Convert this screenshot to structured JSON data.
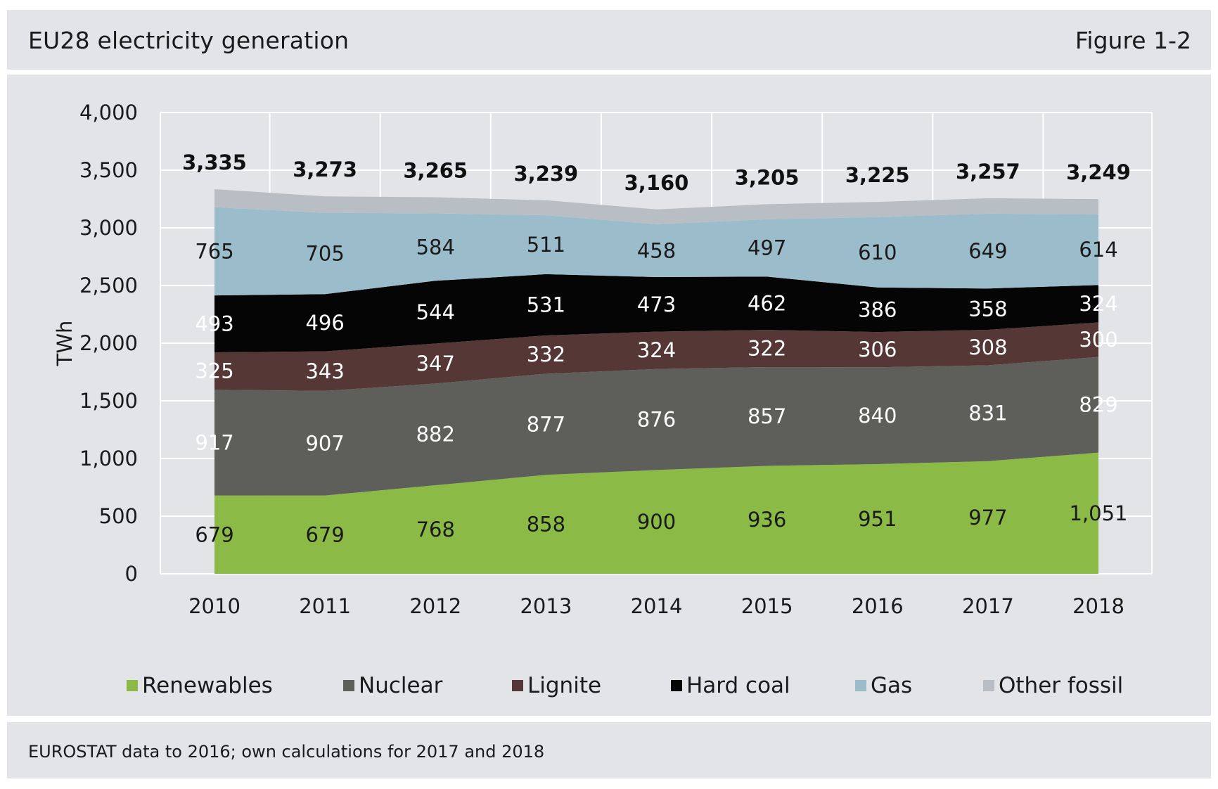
{
  "header": {
    "title": "EU28 electricity generation",
    "figure_number": "Figure 1-2"
  },
  "footer": {
    "source": "EUROSTAT data to 2016; own calculations for 2017 and 2018"
  },
  "chart_data": {
    "type": "area",
    "stacked": true,
    "x": [
      "2010",
      "2011",
      "2012",
      "2013",
      "2014",
      "2015",
      "2016",
      "2017",
      "2018"
    ],
    "ylabel": "TWh",
    "ylim": [
      0,
      4000
    ],
    "yticks": [
      0,
      500,
      1000,
      1500,
      2000,
      2500,
      3000,
      3500,
      4000
    ],
    "ytick_labels": [
      "0",
      "500",
      "1,000",
      "1,500",
      "2,000",
      "2,500",
      "3,000",
      "3,500",
      "4,000"
    ],
    "grid": true,
    "legend_position": "bottom",
    "series": [
      {
        "name": "Renewables",
        "color": "#8bbb46",
        "label_color": "#1a1a1a",
        "values": [
          679,
          679,
          768,
          858,
          900,
          936,
          951,
          977,
          1051
        ],
        "labels": [
          "679",
          "679",
          "768",
          "858",
          "900",
          "936",
          "951",
          "977",
          "1,051"
        ]
      },
      {
        "name": "Nuclear",
        "color": "#5e5f5a",
        "label_color": "#ffffff",
        "values": [
          917,
          907,
          882,
          877,
          876,
          857,
          840,
          831,
          829
        ],
        "labels": [
          "917",
          "907",
          "882",
          "877",
          "876",
          "857",
          "840",
          "831",
          "829"
        ]
      },
      {
        "name": "Lignite",
        "color": "#553735",
        "label_color": "#ffffff",
        "values": [
          325,
          343,
          347,
          332,
          324,
          322,
          306,
          308,
          300
        ],
        "labels": [
          "325",
          "343",
          "347",
          "332",
          "324",
          "322",
          "306",
          "308",
          "300"
        ]
      },
      {
        "name": "Hard coal",
        "color": "#050505",
        "label_color": "#ffffff",
        "values": [
          493,
          496,
          544,
          531,
          473,
          462,
          386,
          358,
          324
        ],
        "labels": [
          "493",
          "496",
          "544",
          "531",
          "473",
          "462",
          "386",
          "358",
          "324"
        ]
      },
      {
        "name": "Gas",
        "color": "#9bbccb",
        "label_color": "#1a1a1a",
        "values": [
          765,
          705,
          584,
          511,
          458,
          497,
          610,
          649,
          614
        ],
        "labels": [
          "765",
          "705",
          "584",
          "511",
          "458",
          "497",
          "610",
          "649",
          "614"
        ]
      },
      {
        "name": "Other fossil",
        "color": "#b9bec4",
        "label_color": "#1a1a1a",
        "values": [
          156,
          143,
          140,
          130,
          129,
          131,
          132,
          134,
          131
        ],
        "labels": []
      }
    ],
    "totals": [
      "3,335",
      "3,273",
      "3,265",
      "3,239",
      "3,160",
      "3,205",
      "3,225",
      "3,257",
      "3,249"
    ],
    "total_values": [
      3335,
      3273,
      3265,
      3239,
      3160,
      3205,
      3225,
      3257,
      3249
    ]
  }
}
